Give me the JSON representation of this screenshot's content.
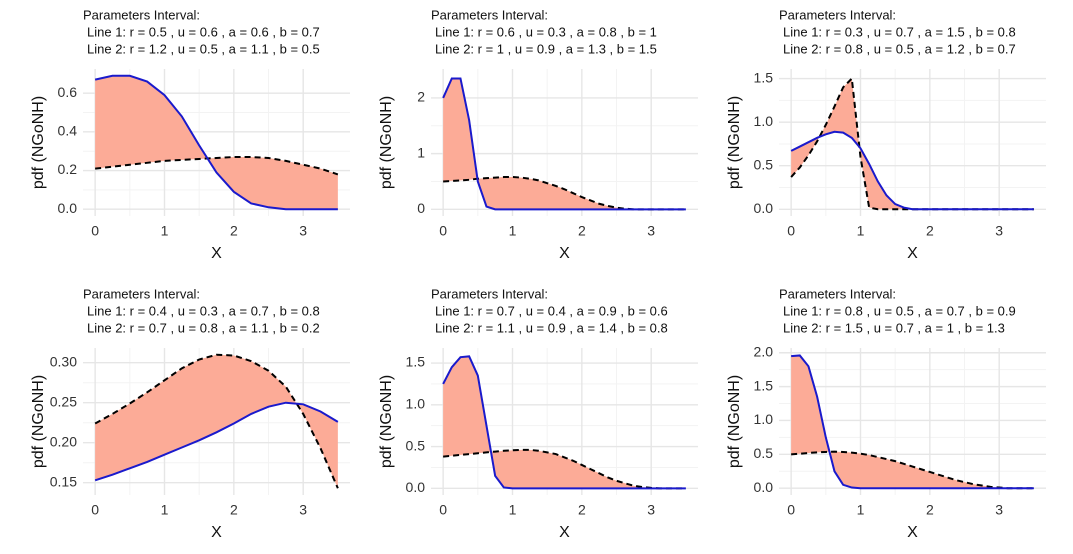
{
  "chart_data": [
    {
      "type": "line",
      "title": [
        "Parameters Interval:",
        "Line 1: r = 0.5 , u = 0.6 , a = 0.6 , b = 0.7",
        "Line 2: r = 1.2 , u = 0.5 , a = 1.1 , b = 0.5"
      ],
      "xlabel": "X",
      "ylabel": "pdf (NGoNH)",
      "grid": true,
      "fill_between": "#fcab97",
      "x": [
        0,
        0.25,
        0.5,
        0.75,
        1,
        1.25,
        1.5,
        1.75,
        2,
        2.25,
        2.5,
        2.75,
        3,
        3.25,
        3.5
      ],
      "series": [
        {
          "color": "#1a1acc",
          "linestyle": "solid",
          "values": [
            0.67,
            0.69,
            0.69,
            0.66,
            0.59,
            0.48,
            0.33,
            0.19,
            0.09,
            0.03,
            0.01,
            0,
            0,
            0,
            0
          ]
        },
        {
          "color": "#000000",
          "linestyle": "dashed",
          "values": [
            0.21,
            0.22,
            0.23,
            0.24,
            0.25,
            0.255,
            0.26,
            0.265,
            0.27,
            0.27,
            0.265,
            0.25,
            0.23,
            0.21,
            0.18
          ]
        }
      ],
      "xlim": [
        -0.175,
        3.675
      ],
      "xticks": [
        0,
        1,
        2,
        3
      ],
      "ylim": [
        -0.035,
        0.725
      ],
      "yticks": [
        {
          "value": 0,
          "label": "0.0"
        },
        0.2,
        0.4,
        0.6
      ]
    },
    {
      "type": "line",
      "title": [
        "Parameters Interval:",
        "Line 1: r = 0.6 , u = 0.3 , a = 0.8 , b = 1",
        "Line 2: r = 1 , u = 0.9 , a = 1.3 , b = 1.5"
      ],
      "xlabel": "X",
      "ylabel": "pdf (NGoNH)",
      "grid": true,
      "fill_between": "#fcab97",
      "x": [
        0,
        0.125,
        0.25,
        0.375,
        0.5,
        0.625,
        0.75,
        0.875,
        1,
        1.125,
        1.25,
        1.375,
        1.5,
        1.625,
        1.75,
        1.875,
        2,
        2.125,
        2.25,
        2.375,
        2.5,
        2.625,
        2.75,
        2.875,
        3,
        3.125,
        3.25,
        3.375,
        3.5
      ],
      "series": [
        {
          "color": "#1a1acc",
          "linestyle": "solid",
          "values": [
            2.0,
            2.35,
            2.35,
            1.6,
            0.5,
            0.05,
            0,
            0,
            0,
            0,
            0,
            0,
            0,
            0,
            0,
            0,
            0,
            0,
            0,
            0,
            0,
            0,
            0,
            0,
            0,
            0,
            0,
            0,
            0
          ]
        },
        {
          "color": "#000000",
          "linestyle": "dashed",
          "values": [
            0.5,
            0.51,
            0.52,
            0.53,
            0.55,
            0.56,
            0.57,
            0.58,
            0.58,
            0.57,
            0.55,
            0.52,
            0.47,
            0.42,
            0.36,
            0.29,
            0.22,
            0.16,
            0.1,
            0.06,
            0.03,
            0.01,
            0,
            0,
            0,
            0,
            0,
            0,
            0
          ]
        }
      ],
      "xlim": [
        -0.175,
        3.675
      ],
      "xticks": [
        0,
        1,
        2,
        3
      ],
      "ylim": [
        -0.12,
        2.52
      ],
      "yticks": [
        0,
        1,
        2
      ]
    },
    {
      "type": "line",
      "title": [
        "Parameters Interval:",
        "Line 1: r = 0.3 , u = 0.7 , a = 1.5 , b = 0.8",
        "Line 2: r = 0.8 , u = 0.5 , a = 1.2 , b = 0.7"
      ],
      "xlabel": "X",
      "ylabel": "pdf (NGoNH)",
      "grid": true,
      "fill_between": "#fcab97",
      "x": [
        0,
        0.125,
        0.25,
        0.375,
        0.5,
        0.625,
        0.75,
        0.875,
        1,
        1.125,
        1.25,
        1.375,
        1.5,
        1.625,
        1.75,
        1.875,
        2,
        2.125,
        2.25,
        2.375,
        2.5,
        2.625,
        2.75,
        2.875,
        3,
        3.125,
        3.25,
        3.375,
        3.5
      ],
      "series": [
        {
          "color": "#1a1acc",
          "linestyle": "solid",
          "values": [
            0.67,
            0.72,
            0.77,
            0.82,
            0.86,
            0.89,
            0.88,
            0.82,
            0.7,
            0.52,
            0.32,
            0.16,
            0.06,
            0.02,
            0,
            0,
            0,
            0,
            0,
            0,
            0,
            0,
            0,
            0,
            0,
            0,
            0,
            0,
            0
          ]
        },
        {
          "color": "#000000",
          "linestyle": "dashed",
          "values": [
            0.37,
            0.48,
            0.62,
            0.78,
            0.97,
            1.18,
            1.4,
            1.5,
            0.6,
            0.02,
            0,
            0,
            0,
            0,
            0,
            0,
            0,
            0,
            0,
            0,
            0,
            0,
            0,
            0,
            0,
            0,
            0,
            0,
            0
          ]
        }
      ],
      "xlim": [
        -0.175,
        3.675
      ],
      "xticks": [
        0,
        1,
        2,
        3
      ],
      "ylim": [
        -0.077,
        1.61
      ],
      "yticks": [
        {
          "value": 0,
          "label": "0.0"
        },
        0.5,
        {
          "value": 1,
          "label": "1.0"
        },
        1.5
      ]
    },
    {
      "type": "line",
      "title": [
        "Parameters Interval:",
        "Line 1: r = 0.4 , u = 0.3 , a = 0.7 , b = 0.8",
        "Line 2: r = 0.7 , u = 0.8 , a = 1.1 , b = 0.2"
      ],
      "xlabel": "X",
      "ylabel": "pdf (NGoNH)",
      "grid": true,
      "fill_between": "#fcab97",
      "x": [
        0,
        0.25,
        0.5,
        0.75,
        1,
        1.25,
        1.5,
        1.75,
        2,
        2.25,
        2.5,
        2.75,
        3,
        3.25,
        3.5
      ],
      "series": [
        {
          "color": "#1a1acc",
          "linestyle": "solid",
          "values": [
            0.153,
            0.16,
            0.168,
            0.176,
            0.185,
            0.194,
            0.203,
            0.213,
            0.224,
            0.236,
            0.245,
            0.25,
            0.248,
            0.239,
            0.226
          ]
        },
        {
          "color": "#000000",
          "linestyle": "dashed",
          "values": [
            0.224,
            0.236,
            0.249,
            0.263,
            0.278,
            0.293,
            0.304,
            0.31,
            0.309,
            0.302,
            0.29,
            0.27,
            0.236,
            0.193,
            0.143
          ]
        }
      ],
      "xlim": [
        -0.175,
        3.675
      ],
      "xticks": [
        0,
        1,
        2,
        3
      ],
      "ylim": [
        0.1346,
        0.3184
      ],
      "yticks": [
        {
          "value": 0.15,
          "label": "0.15"
        },
        {
          "value": 0.2,
          "label": "0.20"
        },
        {
          "value": 0.25,
          "label": "0.25"
        },
        {
          "value": 0.3,
          "label": "0.30"
        }
      ]
    },
    {
      "type": "line",
      "title": [
        "Parameters Interval:",
        "Line 1: r = 0.7 , u = 0.4 , a = 0.9 , b = 0.6",
        "Line 2: r = 1.1 , u = 0.9 , a = 1.4 , b = 0.8"
      ],
      "xlabel": "X",
      "ylabel": "pdf (NGoNH)",
      "grid": true,
      "fill_between": "#fcab97",
      "x": [
        0,
        0.125,
        0.25,
        0.375,
        0.5,
        0.625,
        0.75,
        0.875,
        1,
        1.125,
        1.25,
        1.375,
        1.5,
        1.625,
        1.75,
        1.875,
        2,
        2.125,
        2.25,
        2.375,
        2.5,
        2.625,
        2.75,
        2.875,
        3,
        3.125,
        3.25,
        3.375,
        3.5
      ],
      "series": [
        {
          "color": "#1a1acc",
          "linestyle": "solid",
          "values": [
            1.25,
            1.45,
            1.57,
            1.58,
            1.35,
            0.75,
            0.15,
            0.01,
            0,
            0,
            0,
            0,
            0,
            0,
            0,
            0,
            0,
            0,
            0,
            0,
            0,
            0,
            0,
            0,
            0,
            0,
            0,
            0,
            0
          ]
        },
        {
          "color": "#000000",
          "linestyle": "dashed",
          "values": [
            0.38,
            0.39,
            0.4,
            0.41,
            0.42,
            0.43,
            0.44,
            0.45,
            0.455,
            0.46,
            0.46,
            0.45,
            0.43,
            0.41,
            0.37,
            0.33,
            0.28,
            0.23,
            0.18,
            0.13,
            0.09,
            0.06,
            0.03,
            0.015,
            0.005,
            0,
            0,
            0,
            0
          ]
        }
      ],
      "xlim": [
        -0.175,
        3.675
      ],
      "xticks": [
        0,
        1,
        2,
        3
      ],
      "ylim": [
        -0.08,
        1.68
      ],
      "yticks": [
        {
          "value": 0,
          "label": "0.0"
        },
        0.5,
        {
          "value": 1,
          "label": "1.0"
        },
        1.5
      ]
    },
    {
      "type": "line",
      "title": [
        "Parameters Interval:",
        "Line 1: r = 0.8 , u = 0.5 , a = 0.7 , b = 0.9",
        "Line 2: r = 1.5 , u = 0.7 , a = 1 , b = 1.3"
      ],
      "xlabel": "X",
      "ylabel": "pdf (NGoNH)",
      "grid": true,
      "fill_between": "#fcab97",
      "x": [
        0,
        0.125,
        0.25,
        0.375,
        0.5,
        0.625,
        0.75,
        0.875,
        1,
        1.125,
        1.25,
        1.375,
        1.5,
        1.625,
        1.75,
        1.875,
        2,
        2.125,
        2.25,
        2.375,
        2.5,
        2.625,
        2.75,
        2.875,
        3,
        3.125,
        3.25,
        3.375,
        3.5
      ],
      "series": [
        {
          "color": "#1a1acc",
          "linestyle": "solid",
          "values": [
            1.95,
            1.96,
            1.8,
            1.35,
            0.75,
            0.25,
            0.05,
            0.01,
            0,
            0,
            0,
            0,
            0,
            0,
            0,
            0,
            0,
            0,
            0,
            0,
            0,
            0,
            0,
            0,
            0,
            0,
            0,
            0,
            0
          ]
        },
        {
          "color": "#000000",
          "linestyle": "dashed",
          "values": [
            0.5,
            0.51,
            0.52,
            0.53,
            0.535,
            0.54,
            0.535,
            0.525,
            0.51,
            0.49,
            0.46,
            0.43,
            0.4,
            0.36,
            0.32,
            0.28,
            0.24,
            0.2,
            0.16,
            0.12,
            0.09,
            0.06,
            0.04,
            0.02,
            0.01,
            0,
            0,
            0,
            0
          ]
        }
      ],
      "xlim": [
        -0.175,
        3.675
      ],
      "xticks": [
        0,
        1,
        2,
        3
      ],
      "ylim": [
        -0.1,
        2.07
      ],
      "yticks": [
        {
          "value": 0,
          "label": "0.0"
        },
        0.5,
        {
          "value": 1,
          "label": "1.0"
        },
        1.5,
        {
          "value": 2,
          "label": "2.0"
        }
      ]
    }
  ]
}
